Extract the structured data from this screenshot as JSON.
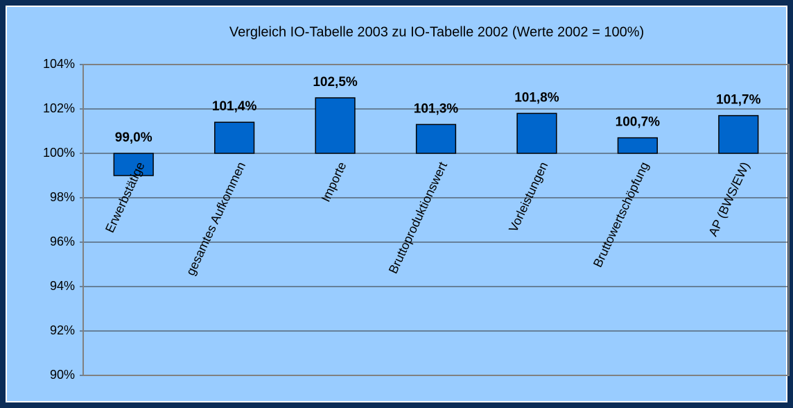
{
  "chart_data": {
    "type": "bar",
    "title": "Vergleich IO-Tabelle 2003 zu IO-Tabelle 2002 (Werte 2002 = 100%)",
    "categories": [
      "Erwerbstätige",
      "gesamtes Aufkommen",
      "Importe",
      "Bruttoproduktionswert",
      "Vorleistungen",
      "Bruttowertschöpfung",
      "AP (BWS/EW)"
    ],
    "values": [
      99.0,
      101.4,
      102.5,
      101.3,
      101.8,
      100.7,
      101.7
    ],
    "value_labels": [
      "99,0%",
      "101,4%",
      "102,5%",
      "101,3%",
      "101,8%",
      "100,7%",
      "101,7%"
    ],
    "color": "#0066cc",
    "baseline": 100,
    "ylim": [
      90,
      104
    ],
    "yticks": [
      {
        "value": 90,
        "label": "90%"
      },
      {
        "value": 92,
        "label": "92%"
      },
      {
        "value": 94,
        "label": "94%"
      },
      {
        "value": 96,
        "label": "96%"
      },
      {
        "value": 98,
        "label": "98%"
      },
      {
        "value": 100,
        "label": "100%"
      },
      {
        "value": 102,
        "label": "102%"
      },
      {
        "value": 104,
        "label": "104%"
      }
    ],
    "grid": true
  }
}
